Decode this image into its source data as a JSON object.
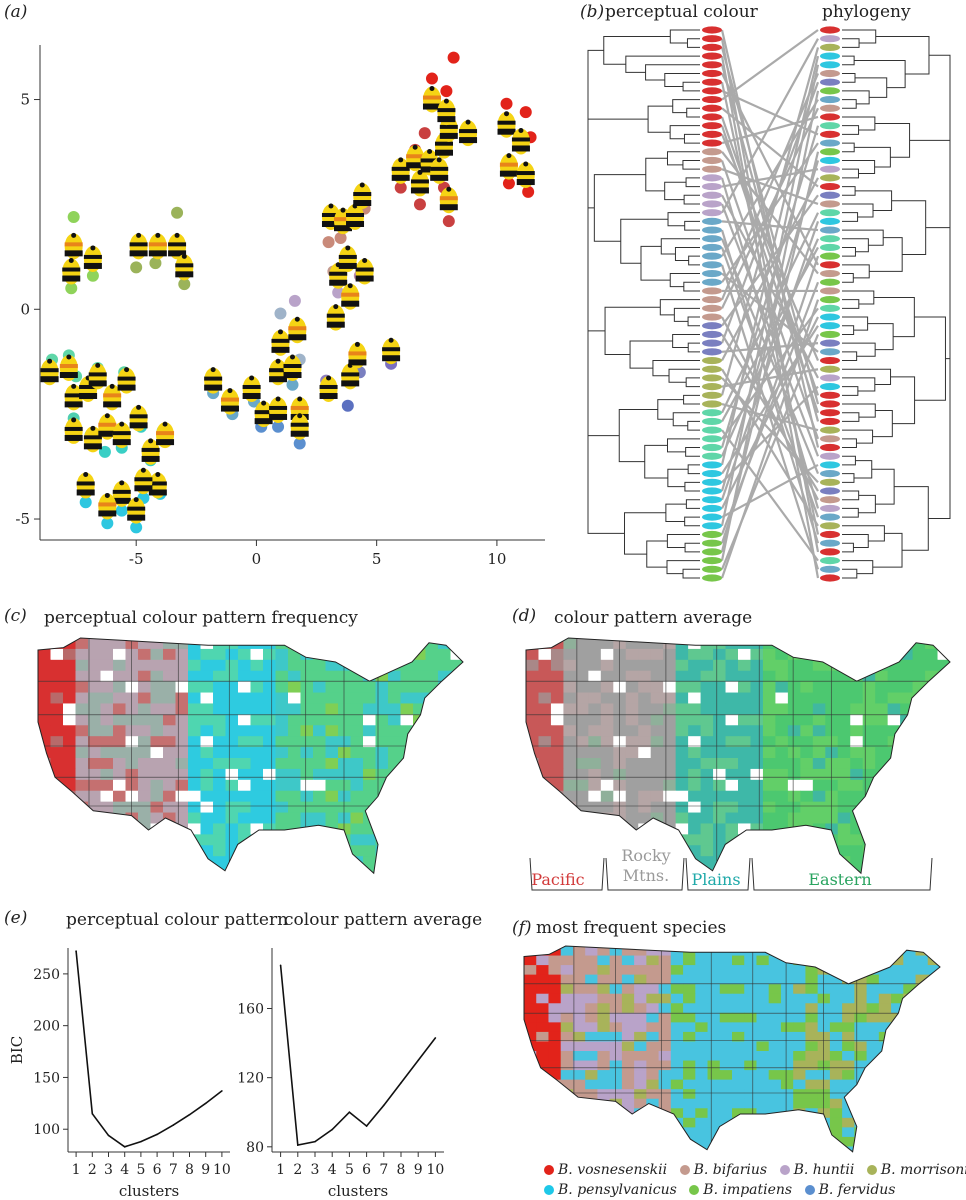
{
  "panels": {
    "a": {
      "letter": "(a)"
    },
    "b": {
      "letter": "(b)",
      "left_title": "perceptual colour",
      "right_title": "phylogeny"
    },
    "c": {
      "letter": "(c)",
      "title": "perceptual colour pattern frequency"
    },
    "d": {
      "letter": "(d)",
      "title": "colour pattern average",
      "regions": [
        {
          "name": "Pacific",
          "color": "#d23a3a"
        },
        {
          "name": "Rocky",
          "name2": "Mtns.",
          "color": "#9a9a9a"
        },
        {
          "name": "Plains",
          "color": "#1fa9a9"
        },
        {
          "name": "Eastern",
          "color": "#2aa460"
        }
      ]
    },
    "e": {
      "letter": "(e)"
    },
    "f": {
      "letter": "(f)",
      "title": "most frequent species"
    }
  },
  "legend": [
    {
      "name": "B. vosnesenskii",
      "color": "#e2231a"
    },
    {
      "name": "B. bifarius",
      "color": "#c49a8e"
    },
    {
      "name": "B. huntii",
      "color": "#b9a3c9"
    },
    {
      "name": "B. morrisoni",
      "color": "#a8b35a"
    },
    {
      "name": "B. pensylvanicus",
      "color": "#1ec8e8"
    },
    {
      "name": "B. impatiens",
      "color": "#77c64a"
    },
    {
      "name": "B. fervidus",
      "color": "#5b8fcf"
    }
  ],
  "chart_data": [
    {
      "type": "scatter",
      "title": "",
      "xlabel": "",
      "ylabel": "",
      "xlim": [
        -9,
        12
      ],
      "ylim": [
        -5.5,
        6.3
      ],
      "xticks": [
        "-5",
        "0",
        "5",
        "10"
      ],
      "xtick_values": [
        -5,
        0,
        5,
        10
      ],
      "yticks": [
        "-5",
        "0",
        "5"
      ],
      "ytick_values": [
        -5,
        0,
        5
      ],
      "points": [
        {
          "x": -8.5,
          "y": -1.2,
          "c": "#5fd6a8"
        },
        {
          "x": -7.8,
          "y": -1.1,
          "c": "#5fd6a8"
        },
        {
          "x": -7.5,
          "y": -1.6,
          "c": "#5fd6a8"
        },
        {
          "x": -7.1,
          "y": -1.9,
          "c": "#4fcfb0"
        },
        {
          "x": -6.6,
          "y": -1.4,
          "c": "#5fd6a8"
        },
        {
          "x": -6.0,
          "y": -2.0,
          "c": "#4fcfb0"
        },
        {
          "x": -5.5,
          "y": -1.5,
          "c": "#5fd6a8"
        },
        {
          "x": -7.6,
          "y": -2.6,
          "c": "#4fcfb0"
        },
        {
          "x": -6.9,
          "y": -3.0,
          "c": "#39cfc5"
        },
        {
          "x": -6.3,
          "y": -3.4,
          "c": "#39cfc5"
        },
        {
          "x": -5.6,
          "y": -3.3,
          "c": "#39cfc5"
        },
        {
          "x": -4.8,
          "y": -2.8,
          "c": "#39cfc5"
        },
        {
          "x": -4.4,
          "y": -3.6,
          "c": "#39cfc5"
        },
        {
          "x": -3.9,
          "y": -2.9,
          "c": "#39cfc5"
        },
        {
          "x": -4.0,
          "y": -4.4,
          "c": "#2ec7e0"
        },
        {
          "x": -4.7,
          "y": -4.5,
          "c": "#2ec7e0"
        },
        {
          "x": -5.6,
          "y": -4.8,
          "c": "#2ec7e0"
        },
        {
          "x": -6.2,
          "y": -5.1,
          "c": "#2ec7e0"
        },
        {
          "x": -7.1,
          "y": -4.6,
          "c": "#2ec7e0"
        },
        {
          "x": -5.0,
          "y": -5.2,
          "c": "#2ec7e0"
        },
        {
          "x": -7.6,
          "y": 2.2,
          "c": "#8fd35a"
        },
        {
          "x": -7.7,
          "y": 0.5,
          "c": "#8fd35a"
        },
        {
          "x": -6.8,
          "y": 0.8,
          "c": "#8fd35a"
        },
        {
          "x": -5.0,
          "y": 1.0,
          "c": "#9bb35a"
        },
        {
          "x": -4.2,
          "y": 1.1,
          "c": "#9bb35a"
        },
        {
          "x": -3.3,
          "y": 2.3,
          "c": "#9bb35a"
        },
        {
          "x": -3.0,
          "y": 0.6,
          "c": "#9bb35a"
        },
        {
          "x": -1.8,
          "y": -2.0,
          "c": "#6aa8c8"
        },
        {
          "x": -1.0,
          "y": -2.5,
          "c": "#6aa8c8"
        },
        {
          "x": -0.1,
          "y": -2.2,
          "c": "#6aa8c8"
        },
        {
          "x": 0.2,
          "y": -2.8,
          "c": "#5b8fcf"
        },
        {
          "x": 0.9,
          "y": -2.8,
          "c": "#5b8fcf"
        },
        {
          "x": 1.8,
          "y": -2.7,
          "c": "#6aa8c8"
        },
        {
          "x": 1.5,
          "y": -1.8,
          "c": "#6aa8c8"
        },
        {
          "x": 1.0,
          "y": -0.1,
          "c": "#9fb3c9"
        },
        {
          "x": 1.6,
          "y": 0.2,
          "c": "#b9a3c9"
        },
        {
          "x": 1.8,
          "y": -1.2,
          "c": "#9fb3c9"
        },
        {
          "x": 1.8,
          "y": -3.2,
          "c": "#5b8fcf"
        },
        {
          "x": 3.4,
          "y": 0.4,
          "c": "#b9a3c9"
        },
        {
          "x": 2.9,
          "y": -1.7,
          "c": "#8f7fc0"
        },
        {
          "x": 4.3,
          "y": -1.5,
          "c": "#7a7fc0"
        },
        {
          "x": 3.8,
          "y": -2.3,
          "c": "#5b70c0"
        },
        {
          "x": 5.6,
          "y": -1.3,
          "c": "#7a6fc0"
        },
        {
          "x": 3.0,
          "y": 1.6,
          "c": "#c98a7a"
        },
        {
          "x": 3.5,
          "y": 1.7,
          "c": "#c98a7a"
        },
        {
          "x": 4.3,
          "y": 0.8,
          "c": "#b98aa8"
        },
        {
          "x": 3.2,
          "y": 0.9,
          "c": "#c49a8e"
        },
        {
          "x": 4.5,
          "y": 2.4,
          "c": "#c98a7a"
        },
        {
          "x": 6.0,
          "y": 2.9,
          "c": "#c94040"
        },
        {
          "x": 6.6,
          "y": 3.8,
          "c": "#c94040"
        },
        {
          "x": 6.8,
          "y": 2.5,
          "c": "#c94040"
        },
        {
          "x": 7.0,
          "y": 4.2,
          "c": "#c94040"
        },
        {
          "x": 7.8,
          "y": 2.9,
          "c": "#c94040"
        },
        {
          "x": 8.0,
          "y": 2.1,
          "c": "#c94040"
        },
        {
          "x": 7.9,
          "y": 5.2,
          "c": "#e2231a"
        },
        {
          "x": 7.3,
          "y": 5.5,
          "c": "#e2231a"
        },
        {
          "x": 8.2,
          "y": 6.0,
          "c": "#e2231a"
        },
        {
          "x": 10.4,
          "y": 4.9,
          "c": "#e2231a"
        },
        {
          "x": 11.2,
          "y": 4.7,
          "c": "#e2231a"
        },
        {
          "x": 11.4,
          "y": 4.1,
          "c": "#e2231a"
        },
        {
          "x": 10.5,
          "y": 3.0,
          "c": "#e2231a"
        },
        {
          "x": 11.3,
          "y": 2.8,
          "c": "#e2231a"
        }
      ],
      "bees": [
        {
          "x": -7.6,
          "y": 1.5
        },
        {
          "x": -7.7,
          "y": 0.9
        },
        {
          "x": -6.8,
          "y": 1.2
        },
        {
          "x": -4.9,
          "y": 1.5
        },
        {
          "x": -4.1,
          "y": 1.5
        },
        {
          "x": -3.3,
          "y": 1.5
        },
        {
          "x": -3.0,
          "y": 1.0
        },
        {
          "x": -8.6,
          "y": -1.5
        },
        {
          "x": -7.8,
          "y": -1.4
        },
        {
          "x": -7.6,
          "y": -2.1
        },
        {
          "x": -7.0,
          "y": -1.9
        },
        {
          "x": -6.6,
          "y": -1.6
        },
        {
          "x": -6.0,
          "y": -2.1
        },
        {
          "x": -5.4,
          "y": -1.7
        },
        {
          "x": -7.6,
          "y": -2.9
        },
        {
          "x": -6.8,
          "y": -3.1
        },
        {
          "x": -6.2,
          "y": -2.8
        },
        {
          "x": -5.6,
          "y": -3.0
        },
        {
          "x": -4.9,
          "y": -2.6
        },
        {
          "x": -4.4,
          "y": -3.4
        },
        {
          "x": -3.8,
          "y": -3.0
        },
        {
          "x": -4.1,
          "y": -4.2
        },
        {
          "x": -4.7,
          "y": -4.1
        },
        {
          "x": -5.6,
          "y": -4.4
        },
        {
          "x": -6.2,
          "y": -4.7
        },
        {
          "x": -7.1,
          "y": -4.2
        },
        {
          "x": -5.0,
          "y": -4.8
        },
        {
          "x": -1.8,
          "y": -1.7
        },
        {
          "x": -1.1,
          "y": -2.2
        },
        {
          "x": -0.2,
          "y": -1.9
        },
        {
          "x": 0.3,
          "y": -2.5
        },
        {
          "x": 0.9,
          "y": -2.4
        },
        {
          "x": 1.8,
          "y": -2.4
        },
        {
          "x": 0.9,
          "y": -1.5
        },
        {
          "x": 1.5,
          "y": -1.4
        },
        {
          "x": 1.0,
          "y": -0.8
        },
        {
          "x": 1.7,
          "y": -0.5
        },
        {
          "x": 1.8,
          "y": -2.8
        },
        {
          "x": 3.0,
          "y": -1.9
        },
        {
          "x": 3.9,
          "y": -1.6
        },
        {
          "x": 4.2,
          "y": -1.1
        },
        {
          "x": 5.6,
          "y": -1.0
        },
        {
          "x": 3.3,
          "y": -0.2
        },
        {
          "x": 3.4,
          "y": 0.8
        },
        {
          "x": 3.9,
          "y": 0.3
        },
        {
          "x": 4.5,
          "y": 0.9
        },
        {
          "x": 3.8,
          "y": 1.2
        },
        {
          "x": 3.1,
          "y": 2.2
        },
        {
          "x": 3.6,
          "y": 2.1
        },
        {
          "x": 4.1,
          "y": 2.2
        },
        {
          "x": 4.4,
          "y": 2.7
        },
        {
          "x": 6.0,
          "y": 3.3
        },
        {
          "x": 6.6,
          "y": 3.6
        },
        {
          "x": 6.8,
          "y": 3.0
        },
        {
          "x": 7.2,
          "y": 3.5
        },
        {
          "x": 7.6,
          "y": 3.3
        },
        {
          "x": 8.0,
          "y": 2.6
        },
        {
          "x": 7.8,
          "y": 3.9
        },
        {
          "x": 8.0,
          "y": 4.3
        },
        {
          "x": 8.8,
          "y": 4.2
        },
        {
          "x": 7.3,
          "y": 5.0
        },
        {
          "x": 7.9,
          "y": 4.7
        },
        {
          "x": 10.4,
          "y": 4.4
        },
        {
          "x": 11.0,
          "y": 4.0
        },
        {
          "x": 10.5,
          "y": 3.4
        },
        {
          "x": 11.2,
          "y": 3.2
        }
      ]
    },
    {
      "type": "line",
      "title": "perceptual colour pattern",
      "xlabel": "clusters",
      "ylabel": "BIC",
      "x": [
        1,
        2,
        3,
        4,
        5,
        6,
        7,
        8,
        9,
        10
      ],
      "values": [
        272,
        115,
        94,
        83,
        88,
        95,
        104,
        114,
        125,
        137
      ],
      "xticks": [
        "1",
        "2",
        "3",
        "4",
        "5",
        "6",
        "7",
        "8",
        "9",
        "10"
      ],
      "yticks": [
        "100",
        "150",
        "200",
        "250"
      ],
      "ytick_values": [
        100,
        150,
        200,
        250
      ],
      "ylim": [
        78,
        275
      ]
    },
    {
      "type": "line",
      "title": "colour pattern average",
      "xlabel": "clusters",
      "ylabel": "",
      "x": [
        1,
        2,
        3,
        4,
        5,
        6,
        7,
        8,
        9,
        10
      ],
      "values": [
        185,
        81,
        83,
        90,
        100,
        92,
        104,
        117,
        130,
        143
      ],
      "xticks": [
        "1",
        "2",
        "3",
        "4",
        "5",
        "6",
        "7",
        "8",
        "9",
        "10"
      ],
      "yticks": [
        "80",
        "120",
        "160"
      ],
      "ytick_values": [
        80,
        120,
        160
      ],
      "ylim": [
        77,
        195
      ]
    }
  ]
}
